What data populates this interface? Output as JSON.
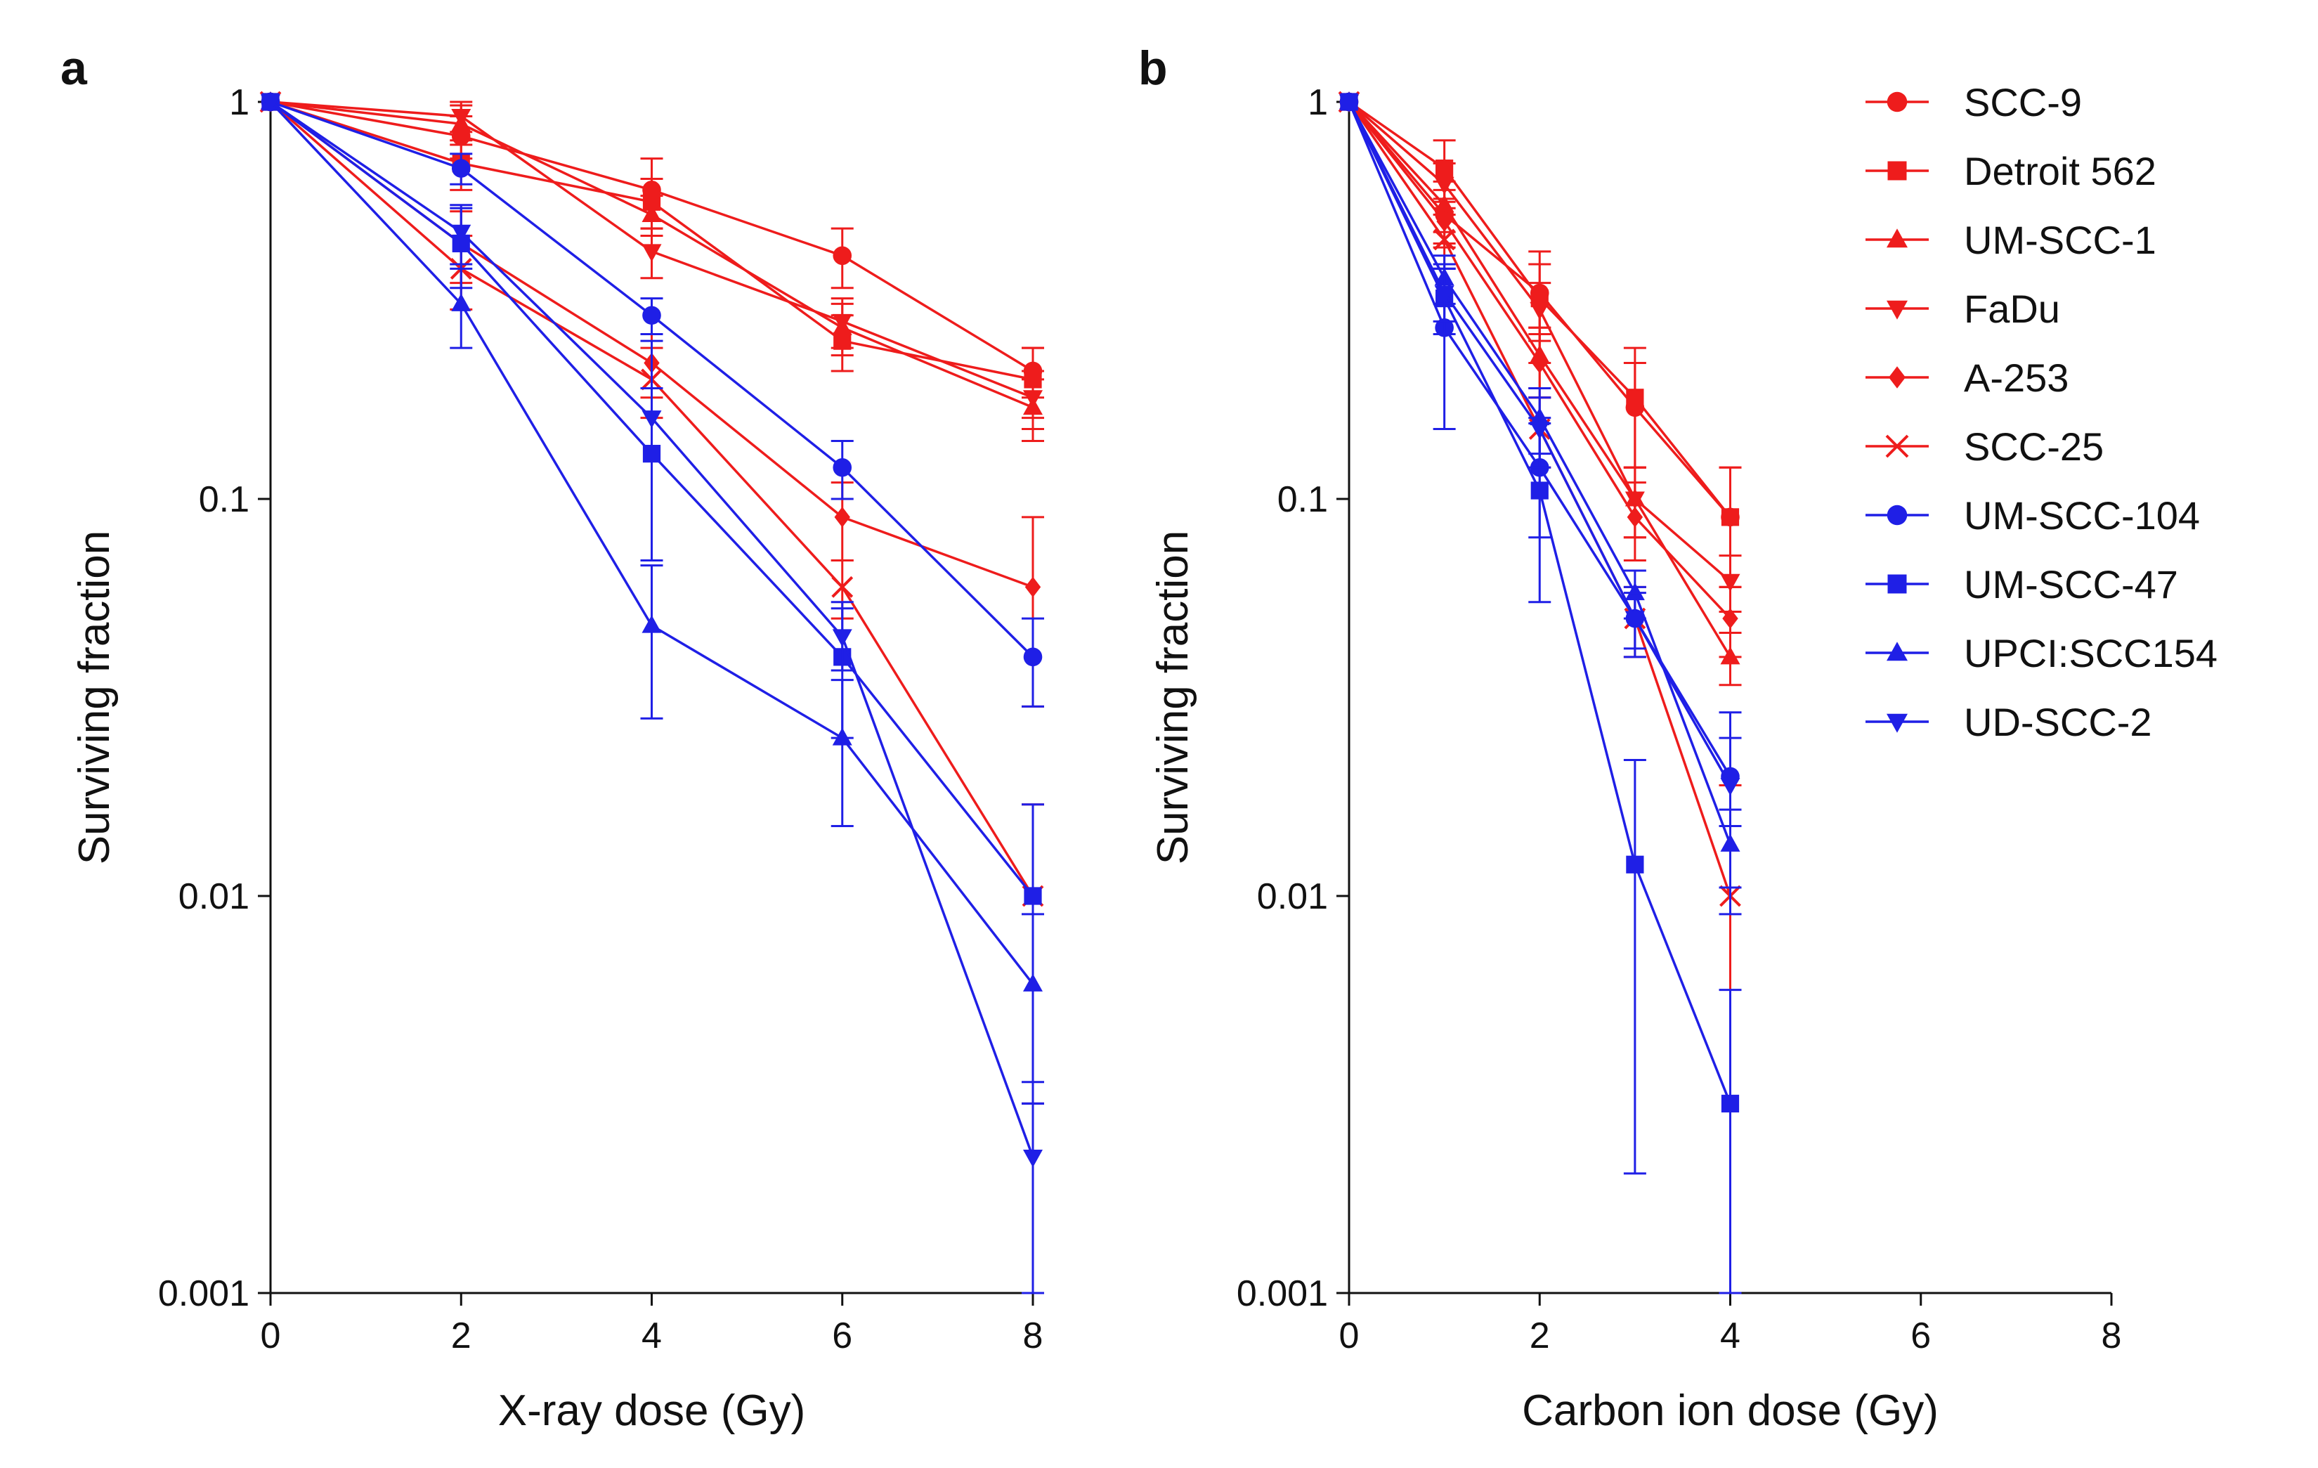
{
  "figure": {
    "colors": {
      "head_neck_red": "#ee1c1c",
      "blue": "#1f1fe6",
      "axis": "#111111"
    }
  },
  "legend": [
    {
      "name": "SCC-9",
      "color": "#ee1c1c",
      "marker": "circle"
    },
    {
      "name": "Detroit 562",
      "color": "#ee1c1c",
      "marker": "square"
    },
    {
      "name": "UM-SCC-1",
      "color": "#ee1c1c",
      "marker": "triangle-up"
    },
    {
      "name": "FaDu",
      "color": "#ee1c1c",
      "marker": "triangle-down"
    },
    {
      "name": "A-253",
      "color": "#ee1c1c",
      "marker": "diamond"
    },
    {
      "name": "SCC-25",
      "color": "#ee1c1c",
      "marker": "cross"
    },
    {
      "name": "UM-SCC-104",
      "color": "#1f1fe6",
      "marker": "circle"
    },
    {
      "name": "UM-SCC-47",
      "color": "#1f1fe6",
      "marker": "square"
    },
    {
      "name": "UPCI:SCC154",
      "color": "#1f1fe6",
      "marker": "triangle-up"
    },
    {
      "name": "UD-SCC-2",
      "color": "#1f1fe6",
      "marker": "triangle-down"
    }
  ],
  "chart_data": [
    {
      "type": "line",
      "panel_label": "a",
      "title": "",
      "xlabel": "X-ray dose (Gy)",
      "ylabel": "Surviving fraction",
      "xlim": [
        0,
        8
      ],
      "ylim": [
        0.001,
        1
      ],
      "yscale": "log",
      "xticks": [
        0,
        2,
        4,
        6,
        8
      ],
      "xtick_labels": [
        "0",
        "2",
        "4",
        "6",
        "8"
      ],
      "yticks": [
        1,
        0.1,
        0.01,
        0.001
      ],
      "ytick_labels": [
        "1",
        "0.1",
        "0.01",
        "0.001"
      ],
      "x": [
        0,
        2,
        4,
        6,
        8
      ],
      "series": [
        {
          "name": "SCC-9",
          "color": "#ee1c1c",
          "marker": "circle",
          "values": [
            1,
            0.82,
            0.6,
            0.41,
            0.21
          ],
          "err": [
            0,
            0.1,
            0.12,
            0.07,
            0.03
          ]
        },
        {
          "name": "Detroit 562",
          "color": "#ee1c1c",
          "marker": "square",
          "values": [
            1,
            0.7,
            0.56,
            0.25,
            0.2
          ],
          "err": [
            0,
            0.1,
            0.08,
            0.04,
            0.04
          ]
        },
        {
          "name": "UM-SCC-1",
          "color": "#ee1c1c",
          "marker": "triangle-up",
          "values": [
            1,
            0.88,
            0.52,
            0.27,
            0.17
          ],
          "err": [
            0,
            0.1,
            0.06,
            0.04,
            0.03
          ]
        },
        {
          "name": "FaDu",
          "color": "#ee1c1c",
          "marker": "triangle-down",
          "values": [
            1,
            0.92,
            0.42,
            0.28,
            0.18
          ],
          "err": [
            0,
            0.08,
            0.06,
            0.04,
            0.03
          ]
        },
        {
          "name": "A-253",
          "color": "#ee1c1c",
          "marker": "diamond",
          "values": [
            1,
            0.44,
            0.22,
            0.09,
            0.06
          ],
          "err": [
            0,
            0.09,
            0.04,
            0.02,
            0.03
          ]
        },
        {
          "name": "SCC-25",
          "color": "#ee1c1c",
          "marker": "cross",
          "values": [
            1,
            0.38,
            0.2,
            0.06,
            0.01
          ],
          "err": [
            0,
            0.08,
            0.04,
            0.01,
            0.007
          ]
        },
        {
          "name": "UM-SCC-104",
          "color": "#1f1fe6",
          "marker": "circle",
          "values": [
            1,
            0.68,
            0.29,
            0.12,
            0.04
          ],
          "err": [
            0,
            0.06,
            0.03,
            0.02,
            0.01
          ]
        },
        {
          "name": "UM-SCC-47",
          "color": "#1f1fe6",
          "marker": "square",
          "values": [
            1,
            0.44,
            0.13,
            0.04,
            0.01
          ],
          "err": [
            0,
            0.1,
            0.06,
            0.015,
            0.007
          ]
        },
        {
          "name": "UPCI:SCC154",
          "color": "#1f1fe6",
          "marker": "triangle-up",
          "values": [
            1,
            0.31,
            0.048,
            0.025,
            0.006
          ],
          "err": [
            0,
            0.07,
            0.02,
            0.01,
            0.003
          ]
        },
        {
          "name": "UD-SCC-2",
          "color": "#1f1fe6",
          "marker": "triangle-down",
          "values": [
            1,
            0.47,
            0.16,
            0.045,
            0.0022
          ],
          "err": [
            0,
            0.08,
            0.09,
            0.008,
            0.0012
          ]
        }
      ]
    },
    {
      "type": "line",
      "panel_label": "b",
      "title": "",
      "xlabel": "Carbon ion dose (Gy)",
      "ylabel": "Surviving fraction",
      "xlim": [
        0,
        8
      ],
      "ylim": [
        0.001,
        1
      ],
      "yscale": "log",
      "xticks": [
        0,
        2,
        4,
        6,
        8
      ],
      "xtick_labels": [
        "0",
        "2",
        "4",
        "6",
        "8"
      ],
      "yticks": [
        1,
        0.1,
        0.01,
        0.001
      ],
      "ytick_labels": [
        "1",
        "0.1",
        "0.01",
        "0.001"
      ],
      "x": [
        0,
        1,
        2,
        3,
        4
      ],
      "series": [
        {
          "name": "SCC-9",
          "color": "#ee1c1c",
          "marker": "circle",
          "values": [
            1,
            0.52,
            0.33,
            0.17,
            0.09
          ],
          "err": [
            0,
            0.08,
            0.06,
            0.05,
            0.03
          ]
        },
        {
          "name": "Detroit 562",
          "color": "#ee1c1c",
          "marker": "square",
          "values": [
            1,
            0.68,
            0.32,
            0.18,
            0.09
          ],
          "err": [
            0,
            0.12,
            0.1,
            0.06,
            0.03
          ]
        },
        {
          "name": "UM-SCC-1",
          "color": "#ee1c1c",
          "marker": "triangle-up",
          "values": [
            1,
            0.55,
            0.23,
            0.1,
            0.04
          ],
          "err": [
            0,
            0.08,
            0.04,
            0.02,
            0.006
          ]
        },
        {
          "name": "FaDu",
          "color": "#ee1c1c",
          "marker": "triangle-down",
          "values": [
            1,
            0.62,
            0.3,
            0.1,
            0.062
          ],
          "err": [
            0,
            0.08,
            0.05,
            0.02,
            0.01
          ]
        },
        {
          "name": "A-253",
          "color": "#ee1c1c",
          "marker": "diamond",
          "values": [
            1,
            0.5,
            0.22,
            0.09,
            0.05
          ],
          "err": [
            0,
            0.07,
            0.04,
            0.02,
            0.01
          ]
        },
        {
          "name": "SCC-25",
          "color": "#ee1c1c",
          "marker": "cross",
          "values": [
            1,
            0.45,
            0.15,
            0.05,
            0.01
          ],
          "err": [
            0,
            0.07,
            0.03,
            0.01,
            0.009
          ]
        },
        {
          "name": "UM-SCC-104",
          "color": "#1f1fe6",
          "marker": "circle",
          "values": [
            1,
            0.27,
            0.12,
            0.05,
            0.02
          ],
          "err": [
            0,
            0.12,
            0.04,
            0.01,
            0.005
          ]
        },
        {
          "name": "UM-SCC-47",
          "color": "#1f1fe6",
          "marker": "square",
          "values": [
            1,
            0.32,
            0.105,
            0.012,
            0.003
          ],
          "err": [
            0,
            0.06,
            0.05,
            0.01,
            0.0028
          ]
        },
        {
          "name": "UPCI:SCC154",
          "color": "#1f1fe6",
          "marker": "triangle-up",
          "values": [
            1,
            0.36,
            0.16,
            0.058,
            0.0135
          ],
          "err": [
            0,
            0.05,
            0.03,
            0.008,
            0.003
          ]
        },
        {
          "name": "UD-SCC-2",
          "color": "#1f1fe6",
          "marker": "triangle-down",
          "values": [
            1,
            0.33,
            0.15,
            0.05,
            0.019
          ],
          "err": [
            0,
            0.05,
            0.03,
            0.008,
            0.01
          ]
        }
      ]
    }
  ]
}
